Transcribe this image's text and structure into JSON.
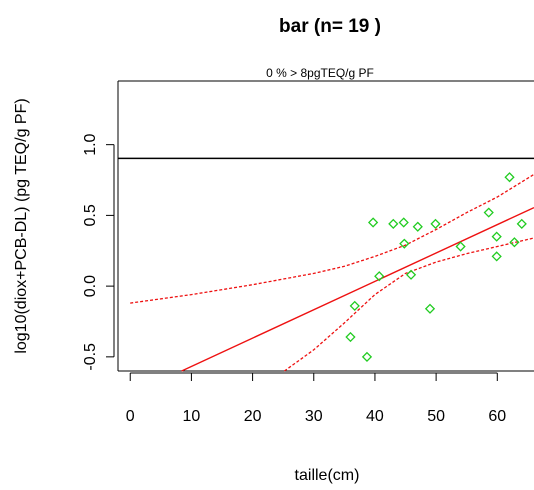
{
  "chart_data": {
    "type": "scatter",
    "title": "bar (n= 19 )",
    "subtitle": "0 % > 8pgTEQ/g PF",
    "xlabel": "taille(cm)",
    "ylabel": "log10(diox+PCB-DL) (pg TEQ/g PF)",
    "xlim": [
      -2,
      66
    ],
    "ylim": [
      -0.6,
      1.45
    ],
    "x_ticks": [
      0,
      10,
      20,
      30,
      40,
      50,
      60
    ],
    "x_tick_labels": [
      "0",
      "10",
      "20",
      "30",
      "40",
      "50",
      "60"
    ],
    "y_ticks": [
      -0.5,
      0.0,
      0.5,
      1.0
    ],
    "y_tick_labels": [
      "-0.5",
      "0.0",
      "0.5",
      "1.0"
    ],
    "threshold_line": 0.903,
    "points": [
      {
        "x": 36.0,
        "y": -0.36
      },
      {
        "x": 36.7,
        "y": -0.14
      },
      {
        "x": 38.7,
        "y": -0.5
      },
      {
        "x": 39.7,
        "y": 0.45
      },
      {
        "x": 40.7,
        "y": 0.07
      },
      {
        "x": 43.0,
        "y": 0.44
      },
      {
        "x": 44.7,
        "y": 0.45
      },
      {
        "x": 44.8,
        "y": 0.3
      },
      {
        "x": 45.9,
        "y": 0.08
      },
      {
        "x": 47.0,
        "y": 0.42
      },
      {
        "x": 49.0,
        "y": -0.16
      },
      {
        "x": 49.9,
        "y": 0.44
      },
      {
        "x": 54.0,
        "y": 0.28
      },
      {
        "x": 58.6,
        "y": 0.52
      },
      {
        "x": 59.9,
        "y": 0.35
      },
      {
        "x": 59.9,
        "y": 0.21
      },
      {
        "x": 62.0,
        "y": 0.77
      },
      {
        "x": 62.8,
        "y": 0.31
      },
      {
        "x": 64.0,
        "y": 0.44
      }
    ],
    "regression": {
      "x": [
        8.4,
        66
      ],
      "y": [
        -0.6,
        0.555
      ]
    },
    "ci_upper": {
      "x": [
        0,
        10,
        20,
        30,
        35,
        40,
        45,
        50,
        55,
        60,
        66
      ],
      "y": [
        -0.12,
        -0.06,
        0.01,
        0.09,
        0.14,
        0.21,
        0.29,
        0.4,
        0.52,
        0.63,
        0.79
      ]
    },
    "ci_lower": {
      "x": [
        25.2,
        30,
        35,
        40,
        45,
        50,
        55,
        60,
        66
      ],
      "y": [
        -0.6,
        -0.45,
        -0.26,
        -0.06,
        0.09,
        0.17,
        0.23,
        0.28,
        0.34
      ]
    },
    "colors": {
      "points": "#22cc22",
      "fit": "#ee1111",
      "ci": "#ee1111",
      "threshold": "#000000"
    }
  }
}
